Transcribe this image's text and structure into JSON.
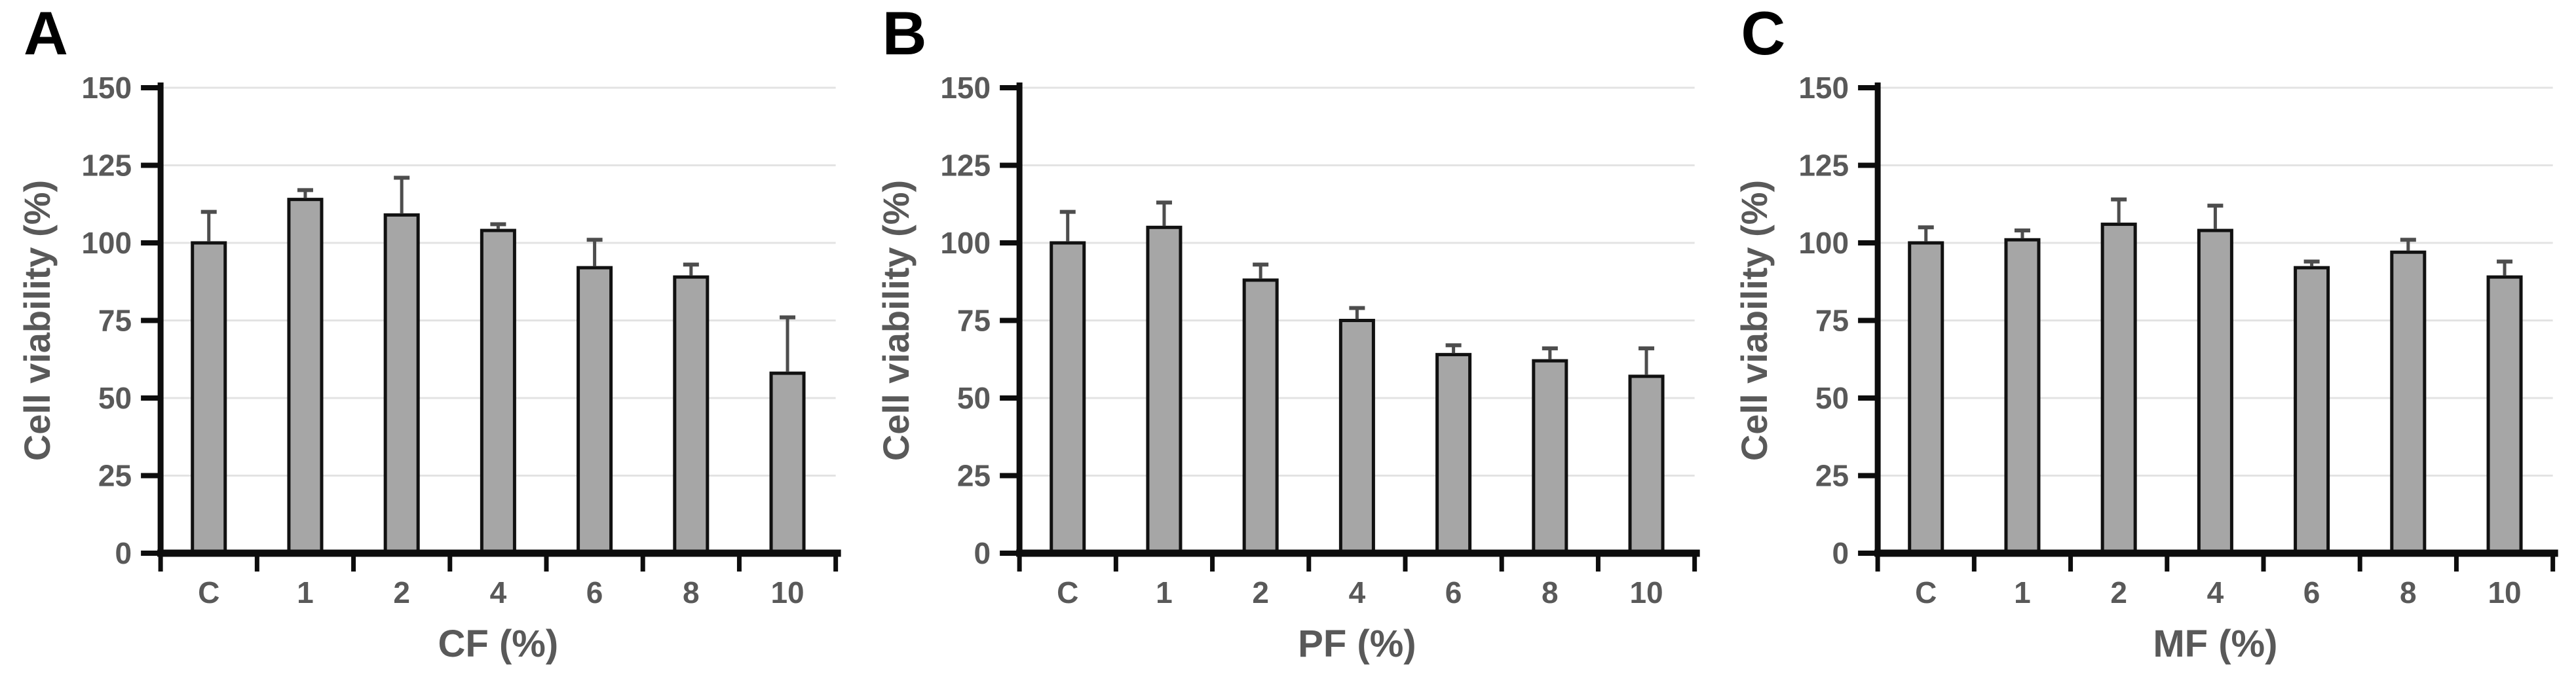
{
  "figure": {
    "background": "#ffffff",
    "panel_letters": [
      "A",
      "B",
      "C"
    ]
  },
  "colors": {
    "bar_fill": "#a6a6a6",
    "bar_stroke": "#111111",
    "error_bar": "#4d4d4d",
    "gridline": "#e3e3e3",
    "axis_line": "#0d0d0d",
    "tick_label": "#595959",
    "axis_title": "#595959",
    "panel_letter": "#000000"
  },
  "chart_data": [
    {
      "type": "bar",
      "panel_letter": "A",
      "title": "",
      "xlabel": "CF (%)",
      "ylabel": "Cell viability (%)",
      "categories": [
        "C",
        "1",
        "2",
        "4",
        "6",
        "8",
        "10"
      ],
      "values": [
        100,
        114,
        109,
        104,
        92,
        89,
        58
      ],
      "error_up": [
        10,
        3,
        12,
        2,
        9,
        4,
        18
      ],
      "ylim": [
        0,
        150
      ],
      "yticks": [
        0,
        25,
        50,
        75,
        100,
        125,
        150
      ],
      "grid": true,
      "legend": false
    },
    {
      "type": "bar",
      "panel_letter": "B",
      "title": "",
      "xlabel": "PF (%)",
      "ylabel": "Cell viability (%)",
      "categories": [
        "C",
        "1",
        "2",
        "4",
        "6",
        "8",
        "10"
      ],
      "values": [
        100,
        105,
        88,
        75,
        64,
        62,
        57
      ],
      "error_up": [
        10,
        8,
        5,
        4,
        3,
        4,
        9
      ],
      "ylim": [
        0,
        150
      ],
      "yticks": [
        0,
        25,
        50,
        75,
        100,
        125,
        150
      ],
      "grid": true,
      "legend": false
    },
    {
      "type": "bar",
      "panel_letter": "C",
      "title": "",
      "xlabel": "MF (%)",
      "ylabel": "Cell viability (%)",
      "categories": [
        "C",
        "1",
        "2",
        "4",
        "6",
        "8",
        "10"
      ],
      "values": [
        100,
        101,
        106,
        104,
        92,
        97,
        89
      ],
      "error_up": [
        5,
        3,
        8,
        8,
        2,
        4,
        5
      ],
      "ylim": [
        0,
        150
      ],
      "yticks": [
        0,
        25,
        50,
        75,
        100,
        125,
        150
      ],
      "grid": true,
      "legend": false
    }
  ]
}
